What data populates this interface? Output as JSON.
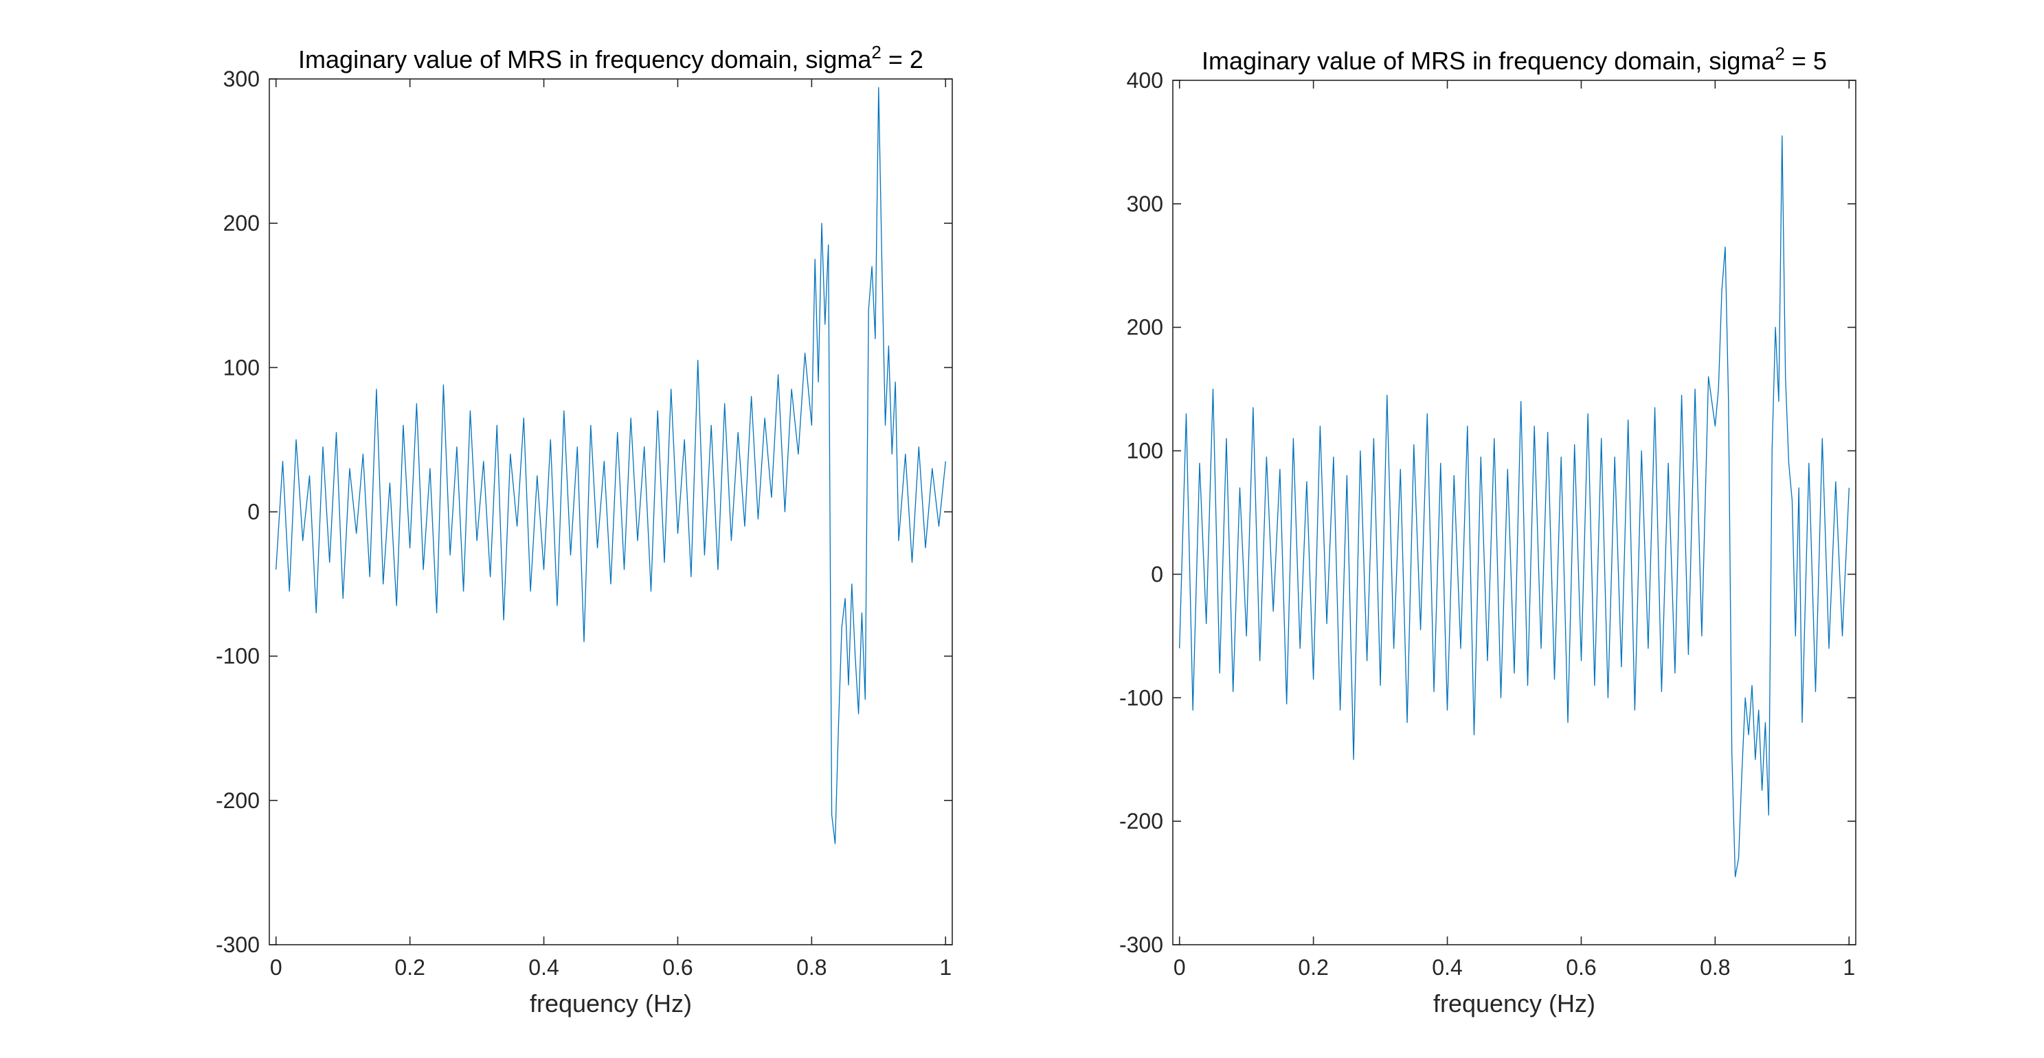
{
  "chart_data": [
    {
      "type": "line",
      "title_prefix": "Imaginary value of MRS in frequency domain, sigma",
      "title_superscript": "2",
      "title_suffix": " = 2",
      "xlabel": "frequency (Hz)",
      "ylabel": "",
      "xlim": [
        -0.01,
        1.01
      ],
      "ylim": [
        -300,
        300
      ],
      "xticks": [
        0,
        0.2,
        0.4,
        0.6,
        0.8,
        1
      ],
      "xtick_labels": [
        "0",
        "0.2",
        "0.4",
        "0.6",
        "0.8",
        "1"
      ],
      "yticks": [
        -300,
        -200,
        -100,
        0,
        100,
        200,
        300
      ],
      "ytick_labels": [
        "-300",
        "-200",
        "-100",
        "0",
        "100",
        "200",
        "300"
      ],
      "grid": false,
      "color": "#0072BD",
      "series": [
        {
          "x": [
            0,
            0.01,
            0.02,
            0.03,
            0.04,
            0.05,
            0.06,
            0.07,
            0.08,
            0.09,
            0.1,
            0.11,
            0.12,
            0.13,
            0.14,
            0.15,
            0.16,
            0.17,
            0.18,
            0.19,
            0.2,
            0.21,
            0.22,
            0.23,
            0.24,
            0.25,
            0.26,
            0.27,
            0.28,
            0.29,
            0.3,
            0.31,
            0.32,
            0.33,
            0.34,
            0.35,
            0.36,
            0.37,
            0.38,
            0.39,
            0.4,
            0.41,
            0.42,
            0.43,
            0.44,
            0.45,
            0.46,
            0.47,
            0.48,
            0.49,
            0.5,
            0.51,
            0.52,
            0.53,
            0.54,
            0.55,
            0.56,
            0.57,
            0.58,
            0.59,
            0.6,
            0.61,
            0.62,
            0.63,
            0.64,
            0.65,
            0.66,
            0.67,
            0.68,
            0.69,
            0.7,
            0.71,
            0.72,
            0.73,
            0.74,
            0.75,
            0.76,
            0.77,
            0.78,
            0.79,
            0.8,
            0.805,
            0.81,
            0.815,
            0.82,
            0.825,
            0.83,
            0.835,
            0.84,
            0.845,
            0.85,
            0.855,
            0.86,
            0.865,
            0.87,
            0.875,
            0.88,
            0.885,
            0.89,
            0.895,
            0.9,
            0.905,
            0.91,
            0.915,
            0.92,
            0.925,
            0.93,
            0.94,
            0.95,
            0.96,
            0.97,
            0.98,
            0.99,
            1.0
          ],
          "values": [
            -40,
            35,
            -55,
            50,
            -20,
            25,
            -70,
            45,
            -35,
            55,
            -60,
            30,
            -15,
            40,
            -45,
            85,
            -50,
            20,
            -65,
            60,
            -25,
            75,
            -40,
            30,
            -70,
            88,
            -30,
            45,
            -55,
            70,
            -20,
            35,
            -45,
            60,
            -75,
            40,
            -10,
            65,
            -55,
            25,
            -40,
            50,
            -65,
            70,
            -30,
            45,
            -90,
            60,
            -25,
            35,
            -50,
            55,
            -40,
            65,
            -20,
            45,
            -55,
            70,
            -35,
            85,
            -15,
            50,
            -45,
            105,
            -30,
            60,
            -40,
            75,
            -20,
            55,
            -10,
            80,
            -5,
            65,
            10,
            95,
            0,
            85,
            40,
            110,
            60,
            175,
            90,
            200,
            130,
            185,
            -210,
            -230,
            -150,
            -80,
            -60,
            -120,
            -50,
            -100,
            -140,
            -70,
            -130,
            140,
            170,
            120,
            294,
            170,
            60,
            115,
            40,
            90,
            -20,
            40,
            -35,
            45,
            -25,
            30,
            -10,
            35
          ]
        }
      ]
    },
    {
      "type": "line",
      "title_prefix": "Imaginary value of MRS in frequency domain, sigma",
      "title_superscript": "2",
      "title_suffix": " = 5",
      "xlabel": "frequency (Hz)",
      "ylabel": "",
      "xlim": [
        -0.01,
        1.01
      ],
      "ylim": [
        -300,
        400
      ],
      "xticks": [
        0,
        0.2,
        0.4,
        0.6,
        0.8,
        1
      ],
      "xtick_labels": [
        "0",
        "0.2",
        "0.4",
        "0.6",
        "0.8",
        "1"
      ],
      "yticks": [
        -300,
        -200,
        -100,
        0,
        100,
        200,
        300,
        400
      ],
      "ytick_labels": [
        "-300",
        "-200",
        "-100",
        "0",
        "100",
        "200",
        "300",
        "400"
      ],
      "grid": false,
      "color": "#0072BD",
      "series": [
        {
          "x": [
            0,
            0.01,
            0.02,
            0.03,
            0.04,
            0.05,
            0.06,
            0.07,
            0.08,
            0.09,
            0.1,
            0.11,
            0.12,
            0.13,
            0.14,
            0.15,
            0.16,
            0.17,
            0.18,
            0.19,
            0.2,
            0.21,
            0.22,
            0.23,
            0.24,
            0.25,
            0.26,
            0.27,
            0.28,
            0.29,
            0.3,
            0.31,
            0.32,
            0.33,
            0.34,
            0.35,
            0.36,
            0.37,
            0.38,
            0.39,
            0.4,
            0.41,
            0.42,
            0.43,
            0.44,
            0.45,
            0.46,
            0.47,
            0.48,
            0.49,
            0.5,
            0.51,
            0.52,
            0.53,
            0.54,
            0.55,
            0.56,
            0.57,
            0.58,
            0.59,
            0.6,
            0.61,
            0.62,
            0.63,
            0.64,
            0.65,
            0.66,
            0.67,
            0.68,
            0.69,
            0.7,
            0.71,
            0.72,
            0.73,
            0.74,
            0.75,
            0.76,
            0.77,
            0.78,
            0.79,
            0.8,
            0.805,
            0.81,
            0.815,
            0.82,
            0.825,
            0.83,
            0.835,
            0.84,
            0.845,
            0.85,
            0.855,
            0.86,
            0.865,
            0.87,
            0.875,
            0.88,
            0.885,
            0.89,
            0.895,
            0.9,
            0.905,
            0.91,
            0.915,
            0.92,
            0.925,
            0.93,
            0.94,
            0.95,
            0.96,
            0.97,
            0.98,
            0.99,
            1.0
          ],
          "values": [
            -60,
            130,
            -110,
            90,
            -40,
            150,
            -80,
            110,
            -95,
            70,
            -50,
            135,
            -70,
            95,
            -30,
            85,
            -105,
            110,
            -60,
            75,
            -85,
            120,
            -40,
            95,
            -110,
            80,
            -150,
            100,
            -70,
            110,
            -90,
            145,
            -60,
            85,
            -120,
            105,
            -45,
            130,
            -95,
            90,
            -110,
            80,
            -60,
            120,
            -130,
            95,
            -70,
            110,
            -100,
            85,
            -80,
            140,
            -90,
            120,
            -60,
            115,
            -85,
            95,
            -120,
            105,
            -70,
            130,
            -90,
            110,
            -100,
            95,
            -75,
            125,
            -110,
            100,
            -60,
            135,
            -95,
            90,
            -80,
            145,
            -65,
            150,
            -50,
            160,
            120,
            150,
            230,
            265,
            140,
            -145,
            -245,
            -230,
            -160,
            -100,
            -130,
            -90,
            -150,
            -110,
            -175,
            -120,
            -195,
            100,
            200,
            140,
            355,
            160,
            90,
            60,
            -50,
            70,
            -120,
            90,
            -95,
            110,
            -60,
            75,
            -50,
            70
          ]
        }
      ]
    }
  ]
}
